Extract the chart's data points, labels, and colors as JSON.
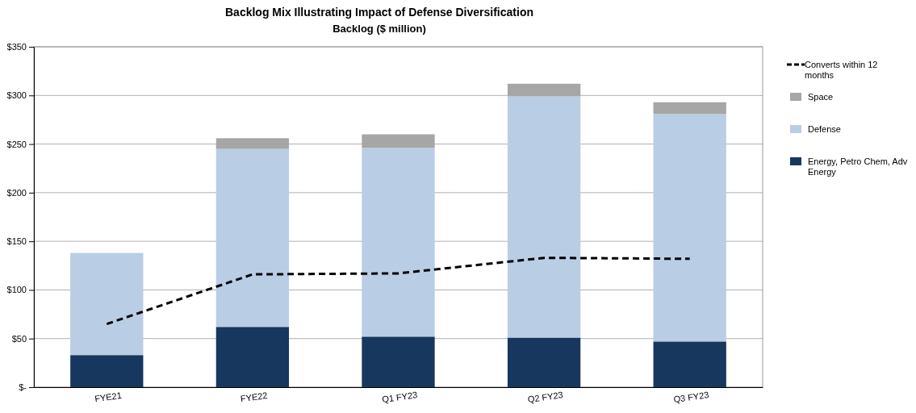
{
  "chart_data": {
    "type": "bar",
    "title": "Backlog Mix Illustrating Impact of Defense Diversification",
    "subtitle": "Backlog ($ million)",
    "categories": [
      "FYE21",
      "FYE22",
      "Q1 FY23",
      "Q2 FY23",
      "Q3 FY23"
    ],
    "stacked": true,
    "series": [
      {
        "name": "Energy, Petro Chem, Adv Energy",
        "color": "#17375e",
        "values": [
          33,
          62,
          52,
          51,
          47
        ]
      },
      {
        "name": "Defense",
        "color": "#b9cde5",
        "values": [
          105,
          183,
          194,
          248,
          234
        ]
      },
      {
        "name": "Space",
        "color": "#a6a6a6",
        "values": [
          0,
          11,
          14,
          13,
          12
        ]
      },
      {
        "name": "Converts within 12 months",
        "type": "line",
        "color": "#000000",
        "line_style": "dashed",
        "marker": "none",
        "values": [
          65,
          116,
          117,
          133,
          132
        ]
      }
    ],
    "ylim": [
      0,
      350
    ],
    "yticks": [
      {
        "value": 0,
        "label": "$-"
      },
      {
        "value": 50,
        "label": "$50"
      },
      {
        "value": 100,
        "label": "$100"
      },
      {
        "value": 150,
        "label": "$150"
      },
      {
        "value": 200,
        "label": "$200"
      },
      {
        "value": 250,
        "label": "$250"
      },
      {
        "value": 300,
        "label": "$300"
      },
      {
        "value": 350,
        "label": "$350"
      }
    ],
    "grid": "y",
    "legend": "right"
  }
}
